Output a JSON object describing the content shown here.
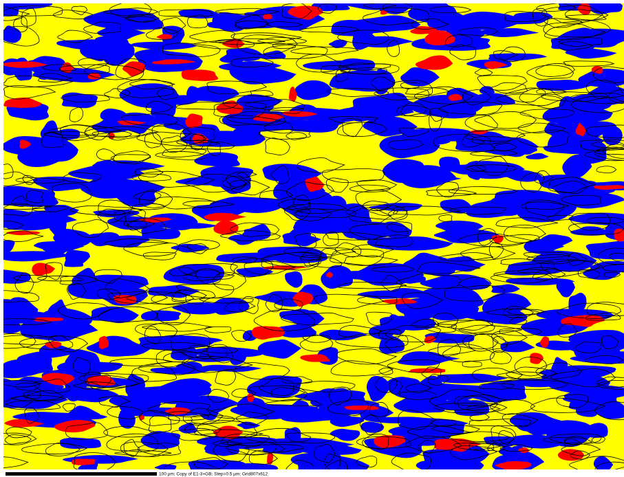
{
  "map": {
    "caption": "100 µm; Copy of E1-3+GB; Step=0.5 µm; Grid807x612"
  }
}
